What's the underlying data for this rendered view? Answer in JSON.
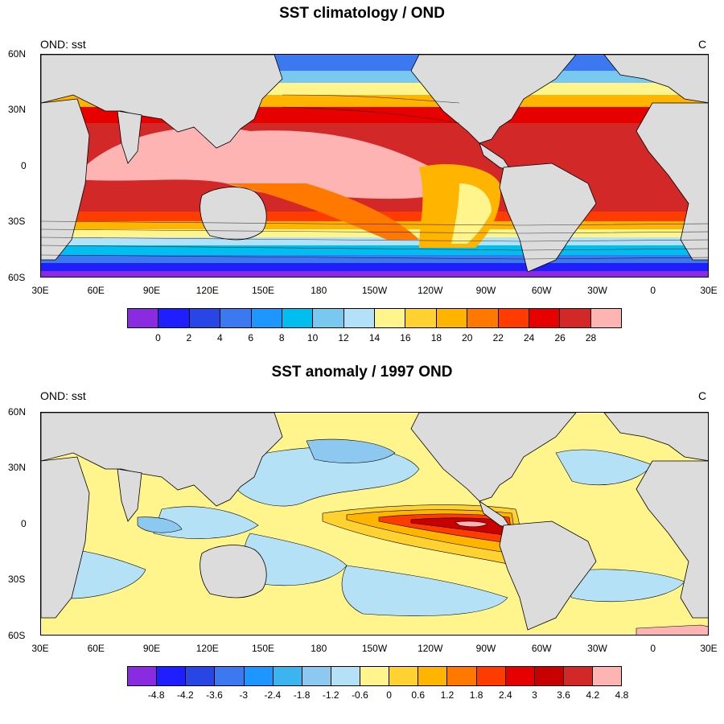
{
  "panels": [
    {
      "title": "SST climatology / OND",
      "left_label": "OND: sst",
      "right_label": "C",
      "lat_labels": [
        "60N",
        "30N",
        "0",
        "30S",
        "60S"
      ],
      "lon_labels": [
        "30E",
        "60E",
        "90E",
        "120E",
        "150E",
        "180",
        "150W",
        "120W",
        "90W",
        "60W",
        "30W",
        "0",
        "30E"
      ],
      "colorbar": {
        "colors": [
          "#8a2be2",
          "#1e1eff",
          "#2846e6",
          "#3c78f0",
          "#1e96ff",
          "#00bef0",
          "#78c8f0",
          "#b4e1fa",
          "#fff58c",
          "#ffd232",
          "#ffb400",
          "#ff7800",
          "#ff3c00",
          "#e60000",
          "#d22828",
          "#ffb4b4"
        ],
        "labels": [
          "0",
          "2",
          "4",
          "6",
          "8",
          "10",
          "12",
          "14",
          "16",
          "18",
          "20",
          "22",
          "24",
          "26",
          "28"
        ]
      }
    },
    {
      "title": "SST anomaly / 1997 OND",
      "left_label": "OND: sst",
      "right_label": "C",
      "lat_labels": [
        "60N",
        "30N",
        "0",
        "30S",
        "60S"
      ],
      "lon_labels": [
        "30E",
        "60E",
        "90E",
        "120E",
        "150E",
        "180",
        "150W",
        "120W",
        "90W",
        "60W",
        "30W",
        "0",
        "30E"
      ],
      "colorbar": {
        "colors": [
          "#8a2be2",
          "#1e1eff",
          "#2846e6",
          "#3c78f0",
          "#1e96ff",
          "#3cb4f0",
          "#8cc8f0",
          "#b4e1f5",
          "#fff58c",
          "#ffd232",
          "#ffb400",
          "#ff7800",
          "#ff3c00",
          "#e60000",
          "#c80000",
          "#d22828",
          "#ffb4b4"
        ],
        "labels": [
          "-4.8",
          "-4.2",
          "-3.6",
          "-3",
          "-2.4",
          "-1.8",
          "-1.2",
          "-0.6",
          "0",
          "0.6",
          "1.2",
          "1.8",
          "2.4",
          "3",
          "3.6",
          "4.2",
          "4.8"
        ]
      }
    }
  ]
}
